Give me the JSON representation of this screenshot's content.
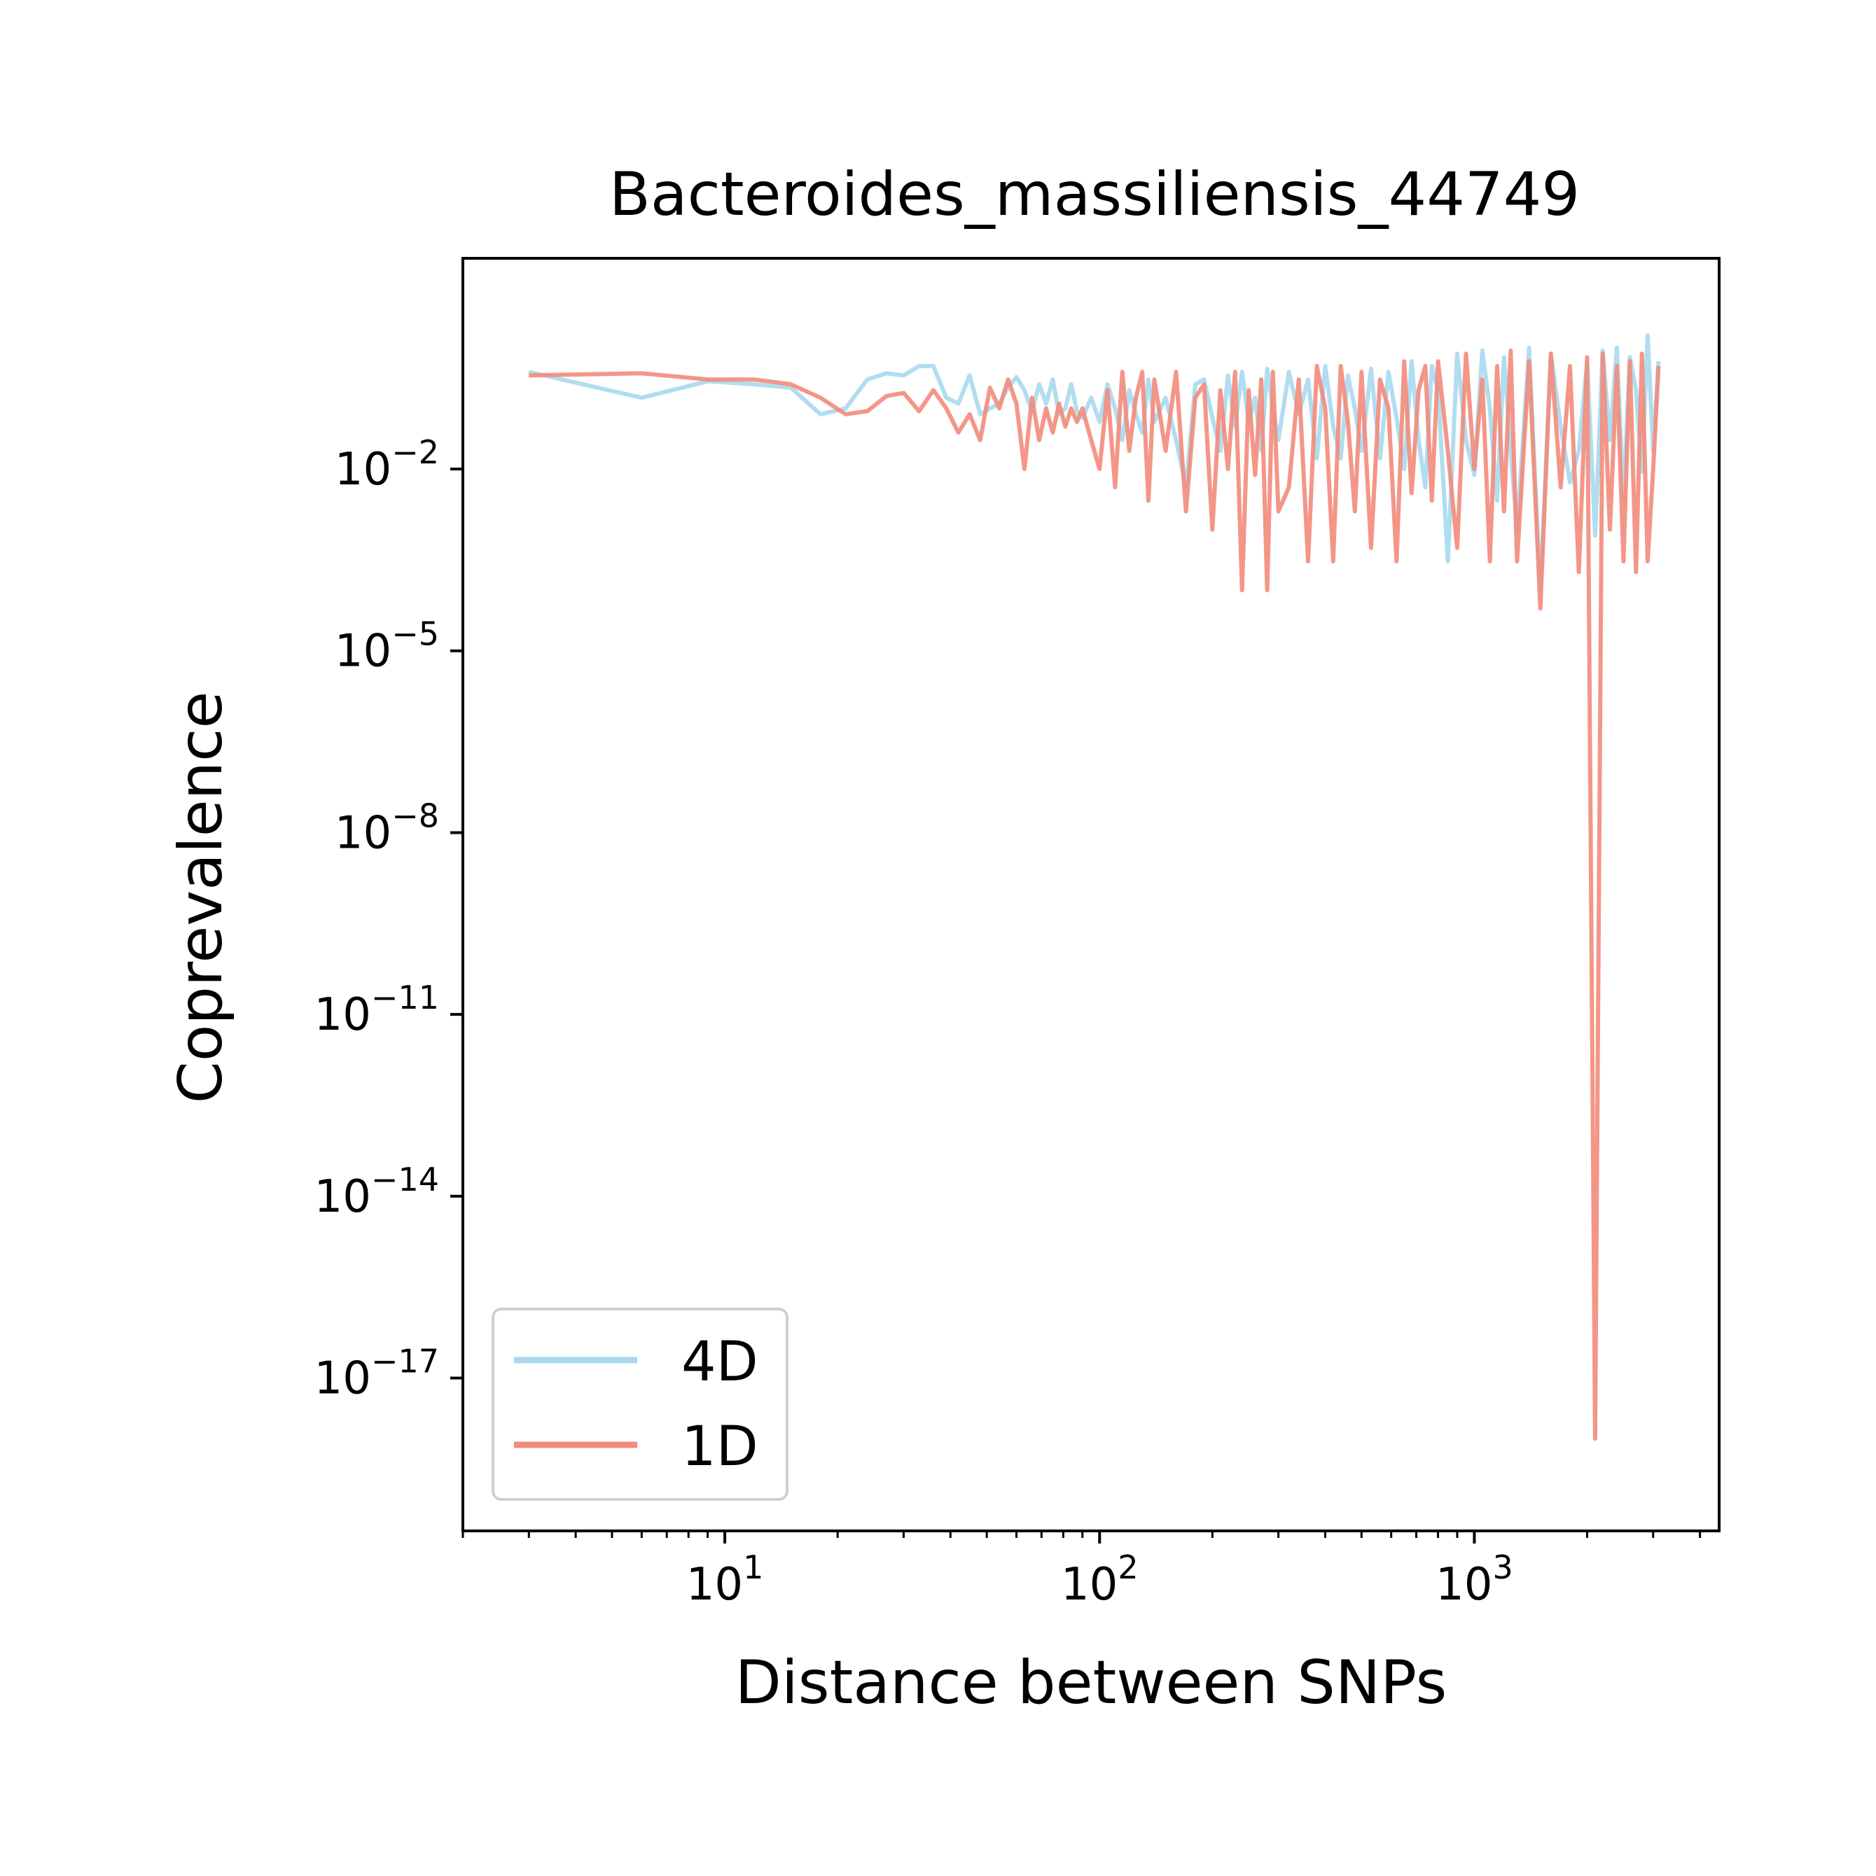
{
  "chart_data": {
    "type": "line",
    "title": "Bacteroides_massiliensis_44749",
    "xlabel": "Distance between SNPs",
    "ylabel": "Coprevalence",
    "xscale": "log",
    "yscale": "log",
    "xlim": [
      2.0,
      4500
    ],
    "ylim": [
      3e-20,
      30
    ],
    "xticks": [
      {
        "value": 10,
        "base": "10",
        "exp": "1"
      },
      {
        "value": 100,
        "base": "10",
        "exp": "2"
      },
      {
        "value": 1000,
        "base": "10",
        "exp": "3"
      }
    ],
    "yticks": [
      {
        "value": 0.01,
        "base": "10",
        "exp": "−2"
      },
      {
        "value": 1e-05,
        "base": "10",
        "exp": "−5"
      },
      {
        "value": 1e-08,
        "base": "10",
        "exp": "−8"
      },
      {
        "value": 1e-11,
        "base": "10",
        "exp": "−11"
      },
      {
        "value": 1e-14,
        "base": "10",
        "exp": "−14"
      },
      {
        "value": 1e-17,
        "base": "10",
        "exp": "−17"
      }
    ],
    "grid": false,
    "legend_position": "lower-left",
    "series": [
      {
        "name": "4D",
        "color": "#a7d9ee",
        "x": [
          3,
          6,
          9,
          12,
          15,
          18,
          21,
          24,
          27,
          30,
          33,
          36,
          39,
          42,
          45,
          48,
          51,
          54,
          57,
          60,
          63,
          66,
          69,
          72,
          75,
          78,
          81,
          84,
          87,
          90,
          95,
          100,
          105,
          110,
          115,
          120,
          125,
          130,
          135,
          140,
          150,
          160,
          170,
          180,
          190,
          200,
          210,
          220,
          230,
          240,
          250,
          260,
          270,
          280,
          290,
          300,
          320,
          340,
          360,
          380,
          400,
          420,
          440,
          460,
          480,
          500,
          530,
          560,
          590,
          620,
          650,
          680,
          710,
          740,
          770,
          800,
          850,
          900,
          950,
          1000,
          1050,
          1100,
          1150,
          1200,
          1250,
          1300,
          1400,
          1500,
          1600,
          1700,
          1800,
          1900,
          2000,
          2100,
          2200,
          2300,
          2400,
          2500,
          2600,
          2700,
          2800,
          2900,
          3000,
          3100
        ],
        "y": [
          0.4,
          0.15,
          0.28,
          0.25,
          0.22,
          0.08,
          0.1,
          0.3,
          0.38,
          0.35,
          0.5,
          0.5,
          0.15,
          0.12,
          0.35,
          0.08,
          0.1,
          0.12,
          0.22,
          0.33,
          0.2,
          0.09,
          0.25,
          0.12,
          0.3,
          0.08,
          0.1,
          0.25,
          0.09,
          0.07,
          0.15,
          0.06,
          0.25,
          0.1,
          0.03,
          0.2,
          0.08,
          0.04,
          0.3,
          0.06,
          0.15,
          0.03,
          0.005,
          0.25,
          0.3,
          0.07,
          0.02,
          0.35,
          0.05,
          0.4,
          0.06,
          0.15,
          0.02,
          0.45,
          0.1,
          0.03,
          0.4,
          0.08,
          0.3,
          0.015,
          0.5,
          0.05,
          0.015,
          0.35,
          0.1,
          0.02,
          0.45,
          0.015,
          0.4,
          0.07,
          0.01,
          0.6,
          0.03,
          0.005,
          0.5,
          0.2,
          0.0003,
          0.8,
          0.03,
          0.008,
          0.9,
          0.1,
          0.003,
          0.7,
          0.02,
          0.001,
          1.0,
          0.0001,
          0.8,
          0.05,
          0.006,
          0.02,
          0.6,
          0.0008,
          0.9,
          0.03,
          1.0,
          0.003,
          0.7,
          0.2,
          0.009,
          1.6,
          0.02,
          0.6
        ]
      },
      {
        "name": "1D",
        "color": "#f28b7b",
        "x": [
          3,
          6,
          9,
          12,
          15,
          18,
          21,
          24,
          27,
          30,
          33,
          36,
          39,
          42,
          45,
          48,
          51,
          54,
          57,
          60,
          63,
          66,
          69,
          72,
          75,
          78,
          81,
          84,
          87,
          90,
          95,
          100,
          105,
          110,
          115,
          120,
          125,
          130,
          135,
          140,
          150,
          160,
          170,
          180,
          190,
          200,
          210,
          220,
          230,
          240,
          250,
          260,
          270,
          280,
          290,
          300,
          320,
          340,
          360,
          380,
          400,
          420,
          440,
          460,
          480,
          500,
          530,
          560,
          590,
          620,
          650,
          680,
          710,
          740,
          770,
          800,
          850,
          900,
          950,
          1000,
          1050,
          1100,
          1150,
          1200,
          1250,
          1300,
          1400,
          1500,
          1600,
          1700,
          1800,
          1900,
          2000,
          2100,
          2200,
          2300,
          2400,
          2500,
          2600,
          2700,
          2800,
          2900,
          3000,
          3100
        ],
        "y": [
          0.35,
          0.38,
          0.3,
          0.3,
          0.25,
          0.15,
          0.08,
          0.09,
          0.16,
          0.18,
          0.09,
          0.2,
          0.1,
          0.04,
          0.08,
          0.03,
          0.22,
          0.1,
          0.3,
          0.12,
          0.01,
          0.15,
          0.03,
          0.1,
          0.04,
          0.12,
          0.05,
          0.1,
          0.06,
          0.1,
          0.03,
          0.01,
          0.2,
          0.005,
          0.4,
          0.02,
          0.15,
          0.4,
          0.003,
          0.3,
          0.02,
          0.4,
          0.002,
          0.15,
          0.25,
          0.001,
          0.2,
          0.01,
          0.4,
          0.0001,
          0.2,
          0.008,
          0.3,
          0.0001,
          0.4,
          0.002,
          0.005,
          0.3,
          0.0003,
          0.5,
          0.1,
          0.0003,
          0.5,
          0.06,
          0.002,
          0.4,
          0.0005,
          0.3,
          0.1,
          0.0003,
          0.6,
          0.004,
          0.2,
          0.5,
          0.003,
          0.6,
          0.02,
          0.0005,
          0.8,
          0.01,
          0.3,
          0.0003,
          0.5,
          0.002,
          0.9,
          0.0003,
          0.6,
          5e-05,
          0.8,
          0.005,
          0.5,
          0.0002,
          0.7,
          1e-18,
          0.8,
          0.001,
          0.5,
          0.0003,
          0.6,
          0.0002,
          0.8,
          0.0003,
          0.01,
          0.5
        ]
      }
    ]
  }
}
